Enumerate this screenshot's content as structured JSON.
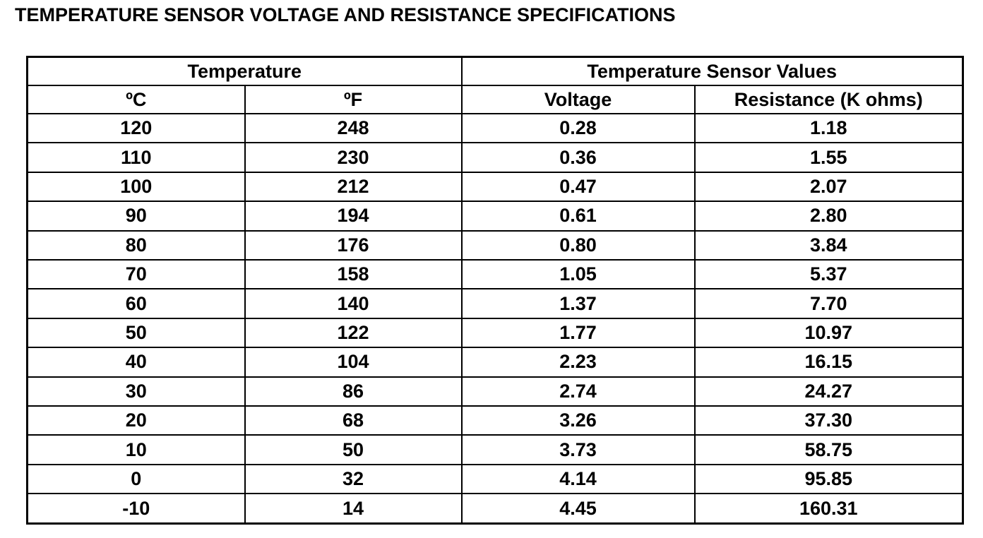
{
  "header": {
    "title": "TEMPERATURE SENSOR VOLTAGE AND RESISTANCE SPECIFICATIONS"
  },
  "table": {
    "group_headers": [
      "Temperature",
      "Temperature Sensor Values"
    ],
    "columns": [
      "ºC",
      "ºF",
      "Voltage",
      "Resistance (K ohms)"
    ],
    "rows": [
      [
        "120",
        "248",
        "0.28",
        "1.18"
      ],
      [
        "110",
        "230",
        "0.36",
        "1.55"
      ],
      [
        "100",
        "212",
        "0.47",
        "2.07"
      ],
      [
        "90",
        "194",
        "0.61",
        "2.80"
      ],
      [
        "80",
        "176",
        "0.80",
        "3.84"
      ],
      [
        "70",
        "158",
        "1.05",
        "5.37"
      ],
      [
        "60",
        "140",
        "1.37",
        "7.70"
      ],
      [
        "50",
        "122",
        "1.77",
        "10.97"
      ],
      [
        "40",
        "104",
        "2.23",
        "16.15"
      ],
      [
        "30",
        "86",
        "2.74",
        "24.27"
      ],
      [
        "20",
        "68",
        "3.26",
        "37.30"
      ],
      [
        "10",
        "50",
        "3.73",
        "58.75"
      ],
      [
        "0",
        "32",
        "4.14",
        "95.85"
      ],
      [
        "-10",
        "14",
        "4.45",
        "160.31"
      ]
    ]
  }
}
